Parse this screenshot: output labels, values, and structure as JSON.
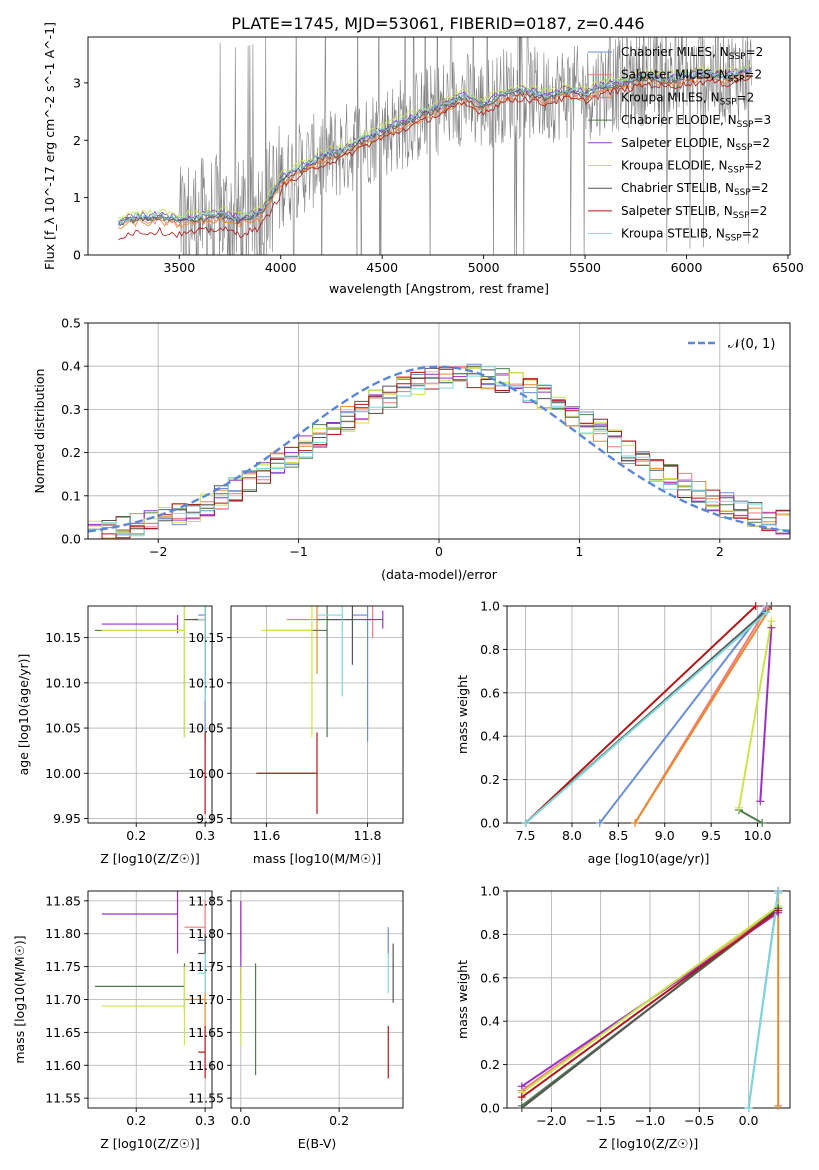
{
  "figure_title": "PLATE=1745, MJD=53061, FIBERID=0187, z=0.446",
  "models": [
    {
      "name": "Chabrier MILES, N",
      "sub": "SSP",
      "n": "=2",
      "color": "#6b8fd6"
    },
    {
      "name": "Salpeter MILES, N",
      "sub": "SSP",
      "n": "=2",
      "color": "#f07c7c"
    },
    {
      "name": "Kroupa MILES, N",
      "sub": "SSP",
      "n": "=2",
      "color": "#e88a2e"
    },
    {
      "name": "Chabrier ELODIE, N",
      "sub": "SSP",
      "n": "=3",
      "color": "#4f7d4f"
    },
    {
      "name": "Salpeter ELODIE, N",
      "sub": "SSP",
      "n": "=2",
      "color": "#9b30c9"
    },
    {
      "name": "Kroupa ELODIE, N",
      "sub": "SSP",
      "n": "=2",
      "color": "#c8e64a"
    },
    {
      "name": "Chabrier STELIB, N",
      "sub": "SSP",
      "n": "=2",
      "color": "#555555"
    },
    {
      "name": "Salpeter STELIB, N",
      "sub": "SSP",
      "n": "=2",
      "color": "#b01818"
    },
    {
      "name": "Kroupa STELIB, N",
      "sub": "SSP",
      "n": "=2",
      "color": "#7fd8d8"
    }
  ],
  "chart_data": [
    {
      "type": "line",
      "panel": "spectrum",
      "xlabel": "wavelength [Angstrom, rest frame]",
      "ylabel": "Flux [f_λ 10^-17 erg cm^-2 s^-1 A^-1]",
      "xlim": [
        3050,
        6510
      ],
      "ylim": [
        0,
        3.8
      ],
      "xticks": [
        3500,
        4000,
        4500,
        5000,
        5500,
        6000,
        6500
      ],
      "yticks": [
        0,
        1,
        2,
        3
      ],
      "data_color": "#808080",
      "model_continuum": {
        "x": [
          3200,
          3250,
          3300,
          3350,
          3400,
          3450,
          3500,
          3600,
          3700,
          3800,
          3900,
          4000,
          4100,
          4200,
          4300,
          4400,
          4500,
          4600,
          4700,
          4800,
          4900,
          5000,
          5100,
          5200,
          5300,
          5400,
          5500,
          5600,
          5700,
          5800,
          5900,
          6000,
          6100,
          6200,
          6300
        ],
        "y": [
          0.55,
          0.62,
          0.65,
          0.63,
          0.66,
          0.62,
          0.6,
          0.65,
          0.7,
          0.6,
          0.72,
          1.3,
          1.5,
          1.7,
          1.8,
          2.0,
          2.15,
          2.3,
          2.45,
          2.6,
          2.75,
          2.6,
          2.8,
          2.85,
          2.75,
          2.85,
          2.8,
          2.95,
          3.0,
          3.1,
          3.05,
          3.1,
          3.15,
          3.1,
          3.2
        ]
      }
    },
    {
      "type": "histogram",
      "panel": "residuals",
      "xlabel": "(data-model)/error",
      "ylabel": "Normed distribution",
      "xlim": [
        -2.5,
        2.5
      ],
      "ylim": [
        0,
        0.5
      ],
      "xticks": [
        -2,
        -1,
        0,
        1,
        2
      ],
      "yticks": [
        0.0,
        0.1,
        0.2,
        0.3,
        0.4,
        0.5
      ],
      "bin_width": 0.1,
      "legend": "𝒩(0, 1)",
      "gaussian": {
        "mean": 0,
        "sigma": 1,
        "color": "#5b87d9"
      }
    },
    {
      "type": "scatter",
      "panel": "age_vs_Z",
      "xlabel": "Z [log10(Z/Z☉)]",
      "ylabel": "age [log10(age/yr)]",
      "xlim": [
        0.13,
        0.31
      ],
      "ylim": [
        9.945,
        10.185
      ],
      "xticks": [
        0.2,
        0.3
      ],
      "yticks": [
        9.95,
        10.0,
        10.05,
        10.1,
        10.15
      ],
      "points": [
        {
          "model": 0,
          "x": 0.3,
          "y": 10.175,
          "xerr": 0.01,
          "yerr": 0.14
        },
        {
          "model": 1,
          "x": 0.3,
          "y": 10.17,
          "xerr": 0.02,
          "yerr": 0.02
        },
        {
          "model": 2,
          "x": 0.3,
          "y": 10.17,
          "xerr": 0.02,
          "yerr": 0.06
        },
        {
          "model": 3,
          "x": 0.27,
          "y": 10.158,
          "xerr": 0.13,
          "yerr": 0.118
        },
        {
          "model": 4,
          "x": 0.26,
          "y": 10.165,
          "xerr": 0.11,
          "yerr": 0.01
        },
        {
          "model": 5,
          "x": 0.27,
          "y": 10.158,
          "xerr": 0.12,
          "yerr": 0.118
        },
        {
          "model": 6,
          "x": 0.3,
          "y": 10.17,
          "xerr": 0.03,
          "yerr": 0.08
        },
        {
          "model": 7,
          "x": 0.3,
          "y": 10.0,
          "xerr": 0.005,
          "yerr": 0.045
        },
        {
          "model": 8,
          "x": 0.3,
          "y": 10.17,
          "xerr": 0.01,
          "yerr": 0.09
        }
      ]
    },
    {
      "type": "scatter",
      "panel": "age_vs_mass",
      "xlabel": "mass [log10(M/M☉)]",
      "ylabel": "",
      "xlim": [
        11.53,
        11.87
      ],
      "ylim": [
        9.945,
        10.185
      ],
      "xticks": [
        11.6,
        11.8
      ],
      "yticks": [
        9.95,
        10.0,
        10.05,
        10.1,
        10.15
      ],
      "points": [
        {
          "model": 0,
          "x": 11.8,
          "y": 10.175,
          "xerr": 0.03,
          "yerr": 0.14
        },
        {
          "model": 1,
          "x": 11.81,
          "y": 10.17,
          "xerr": 0.02,
          "yerr": 0.02
        },
        {
          "model": 2,
          "x": 11.7,
          "y": 10.17,
          "xerr": 0.06,
          "yerr": 0.06
        },
        {
          "model": 3,
          "x": 11.72,
          "y": 10.158,
          "xerr": 0.12,
          "yerr": 0.118
        },
        {
          "model": 4,
          "x": 11.83,
          "y": 10.17,
          "xerr": 0.13,
          "yerr": 0.01
        },
        {
          "model": 5,
          "x": 11.69,
          "y": 10.158,
          "xerr": 0.1,
          "yerr": 0.118
        },
        {
          "model": 6,
          "x": 11.77,
          "y": 10.17,
          "xerr": 0.05,
          "yerr": 0.05
        },
        {
          "model": 7,
          "x": 11.7,
          "y": 10.0,
          "xerr": 0.12,
          "yerr": 0.045
        },
        {
          "model": 8,
          "x": 11.75,
          "y": 10.175,
          "xerr": 0.05,
          "yerr": 0.09
        }
      ]
    },
    {
      "type": "line",
      "panel": "weight_vs_age",
      "xlabel": "age [log10(age/yr)]",
      "ylabel": "mass weight",
      "xlim": [
        7.3,
        10.35
      ],
      "ylim": [
        0,
        1.0
      ],
      "xticks": [
        7.5,
        8.0,
        8.5,
        9.0,
        9.5,
        10.0
      ],
      "yticks": [
        0.0,
        0.2,
        0.4,
        0.6,
        0.8,
        1.0
      ],
      "lines": [
        {
          "model": 0,
          "x": [
            8.3,
            10.1
          ],
          "y": [
            0.0,
            1.0
          ]
        },
        {
          "model": 1,
          "x": [
            8.68,
            10.1
          ],
          "y": [
            0.0,
            0.99
          ]
        },
        {
          "model": 2,
          "x": [
            8.68,
            10.15
          ],
          "y": [
            0.0,
            1.0
          ]
        },
        {
          "model": 3,
          "x": [
            9.8,
            10.05
          ],
          "y": [
            0.06,
            0.0
          ]
        },
        {
          "model": 4,
          "x": [
            10.03,
            10.15
          ],
          "y": [
            0.1,
            0.9
          ]
        },
        {
          "model": 5,
          "x": [
            9.8,
            10.15
          ],
          "y": [
            0.07,
            0.93
          ]
        },
        {
          "model": 6,
          "x": [
            7.5,
            10.15
          ],
          "y": [
            0.0,
            1.0
          ]
        },
        {
          "model": 7,
          "x": [
            7.5,
            9.98
          ],
          "y": [
            0.0,
            1.0
          ]
        },
        {
          "model": 8,
          "x": [
            7.5,
            10.1
          ],
          "y": [
            0.0,
            0.97
          ]
        }
      ]
    },
    {
      "type": "scatter",
      "panel": "mass_vs_Z",
      "xlabel": "Z [log10(Z/Z☉)]",
      "ylabel": "mass [log10(M/M☉)]",
      "xlim": [
        0.13,
        0.31
      ],
      "ylim": [
        11.535,
        11.865
      ],
      "xticks": [
        0.2,
        0.3
      ],
      "yticks": [
        11.55,
        11.6,
        11.65,
        11.7,
        11.75,
        11.8,
        11.85
      ],
      "points": [
        {
          "model": 0,
          "x": 0.3,
          "y": 11.79,
          "xerr": 0.01,
          "yerr": 0.02
        },
        {
          "model": 1,
          "x": 0.3,
          "y": 11.81,
          "xerr": 0.03,
          "yerr": 0.04
        },
        {
          "model": 2,
          "x": 0.3,
          "y": 11.7,
          "xerr": 0.03,
          "yerr": 0.05
        },
        {
          "model": 3,
          "x": 0.27,
          "y": 11.72,
          "xerr": 0.13,
          "yerr": 0.035
        },
        {
          "model": 4,
          "x": 0.26,
          "y": 11.83,
          "xerr": 0.11,
          "yerr": 0.06
        },
        {
          "model": 5,
          "x": 0.27,
          "y": 11.69,
          "xerr": 0.12,
          "yerr": 0.06
        },
        {
          "model": 6,
          "x": 0.3,
          "y": 11.77,
          "xerr": 0.01,
          "yerr": 0.03
        },
        {
          "model": 7,
          "x": 0.3,
          "y": 11.62,
          "xerr": 0.01,
          "yerr": 0.04
        },
        {
          "model": 8,
          "x": 0.3,
          "y": 11.74,
          "xerr": 0.01,
          "yerr": 0.03
        }
      ]
    },
    {
      "type": "scatter",
      "panel": "mass_vs_EBV",
      "xlabel": "E(B-V)",
      "ylabel": "",
      "xlim": [
        -0.02,
        0.33
      ],
      "ylim": [
        11.535,
        11.865
      ],
      "xticks": [
        0.0,
        0.2
      ],
      "yticks": [
        11.55,
        11.6,
        11.65,
        11.7,
        11.75,
        11.8,
        11.85
      ],
      "points": [
        {
          "model": 0,
          "x": 0.3,
          "y": 11.79,
          "xerr": 0,
          "yerr": 0.02
        },
        {
          "model": 1,
          "x": 0.0,
          "y": 11.81,
          "xerr": 0,
          "yerr": 0.04
        },
        {
          "model": 2,
          "x": 0.0,
          "y": 11.7,
          "xerr": 0,
          "yerr": 0.05
        },
        {
          "model": 3,
          "x": 0.03,
          "y": 11.67,
          "xerr": 0,
          "yerr": 0.085
        },
        {
          "model": 4,
          "x": 0.0,
          "y": 11.78,
          "xerr": 0,
          "yerr": 0.07
        },
        {
          "model": 5,
          "x": 0.0,
          "y": 11.69,
          "xerr": 0,
          "yerr": 0.06
        },
        {
          "model": 6,
          "x": 0.31,
          "y": 11.74,
          "xerr": 0,
          "yerr": 0.045
        },
        {
          "model": 7,
          "x": 0.3,
          "y": 11.62,
          "xerr": 0,
          "yerr": 0.04
        },
        {
          "model": 8,
          "x": 0.3,
          "y": 11.74,
          "xerr": 0,
          "yerr": 0.03
        }
      ]
    },
    {
      "type": "line",
      "panel": "weight_vs_Z",
      "xlabel": "Z [log10(Z/Z☉)]",
      "ylabel": "mass weight",
      "xlim": [
        -2.45,
        0.42
      ],
      "ylim": [
        0,
        1.0
      ],
      "xticks": [
        -2.0,
        -1.5,
        -1.0,
        -0.5,
        0.0
      ],
      "yticks": [
        0.0,
        0.2,
        0.4,
        0.6,
        0.8,
        1.0
      ],
      "lines": [
        {
          "model": 0,
          "x": [
            0.0,
            0.3
          ],
          "y": [
            0.0,
            1.0
          ]
        },
        {
          "model": 1,
          "x": [
            -2.3,
            0.3
          ],
          "y": [
            0.08,
            0.92
          ]
        },
        {
          "model": 2,
          "x": [
            0.3,
            0.3
          ],
          "y": [
            0.01,
            0.99
          ]
        },
        {
          "model": 3,
          "x": [
            -2.3,
            0.3
          ],
          "y": [
            0.01,
            0.91
          ]
        },
        {
          "model": 4,
          "x": [
            -2.3,
            0.3
          ],
          "y": [
            0.1,
            0.9
          ]
        },
        {
          "model": 5,
          "x": [
            -2.3,
            0.3
          ],
          "y": [
            0.07,
            0.93
          ]
        },
        {
          "model": 6,
          "x": [
            -2.3,
            0.3
          ],
          "y": [
            0.0,
            0.92
          ]
        },
        {
          "model": 7,
          "x": [
            -2.3,
            0.3
          ],
          "y": [
            0.05,
            0.91
          ]
        },
        {
          "model": 8,
          "x": [
            0.0,
            0.3
          ],
          "y": [
            0.0,
            0.99
          ]
        }
      ]
    }
  ]
}
